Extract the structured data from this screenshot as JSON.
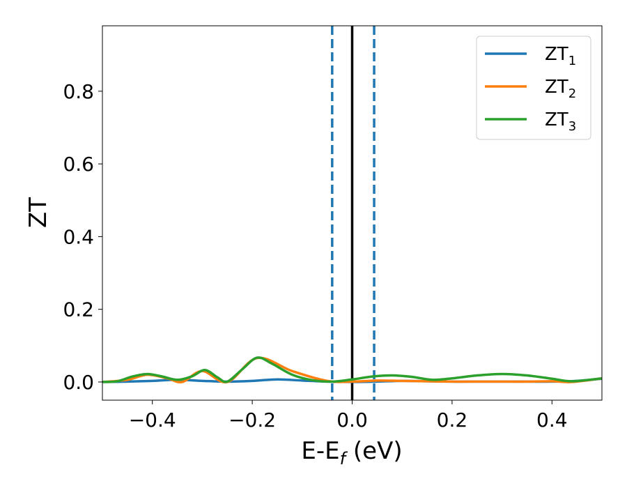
{
  "chart_data": {
    "type": "line",
    "xlabel": "E-E",
    "xlabel_sub": "f",
    "xlabel_unit": " (eV)",
    "ylabel": "ZT",
    "xlim": [
      -0.5,
      0.5
    ],
    "ylim": [
      -0.05,
      0.98
    ],
    "xticks": [
      -0.4,
      -0.2,
      0.0,
      0.2,
      0.4
    ],
    "xtick_labels": [
      "−0.4",
      "−0.2",
      "0.0",
      "0.2",
      "0.4"
    ],
    "yticks": [
      0.0,
      0.2,
      0.4,
      0.6,
      0.8
    ],
    "ytick_labels": [
      "0.0",
      "0.2",
      "0.4",
      "0.6",
      "0.8"
    ],
    "grid": false,
    "legend_position": "top-right",
    "reference_lines": [
      {
        "x": -0.04,
        "style": "dashed",
        "color": "#1f77b4"
      },
      {
        "x": 0.0,
        "style": "solid",
        "color": "#000000"
      },
      {
        "x": 0.044,
        "style": "dashed",
        "color": "#1f77b4"
      }
    ],
    "series": [
      {
        "name": "ZT",
        "name_sub": "1",
        "color": "#1f77b4",
        "x": [
          -0.5,
          -0.45,
          -0.4,
          -0.35,
          -0.3,
          -0.25,
          -0.2,
          -0.15,
          -0.1,
          -0.05,
          0.0,
          0.05,
          0.1,
          0.15,
          0.2,
          0.25,
          0.3,
          0.35,
          0.4,
          0.45,
          0.5
        ],
        "y": [
          0.0,
          0.001,
          0.003,
          0.006,
          0.003,
          0.001,
          0.003,
          0.007,
          0.004,
          0.001,
          0.0,
          0.001,
          0.003,
          0.002,
          0.001,
          0.001,
          0.001,
          0.001,
          0.001,
          0.003,
          0.009
        ]
      },
      {
        "name": "ZT",
        "name_sub": "2",
        "color": "#ff7f0e",
        "x": [
          -0.5,
          -0.45,
          -0.41,
          -0.37,
          -0.34,
          -0.3,
          -0.25,
          -0.19,
          -0.12,
          -0.05,
          0.0,
          0.05,
          0.1,
          0.15,
          0.2,
          0.25,
          0.3,
          0.35,
          0.4,
          0.44,
          0.5
        ],
        "y": [
          0.0,
          0.006,
          0.02,
          0.01,
          0.0,
          0.03,
          0.0,
          0.066,
          0.03,
          0.003,
          0.001,
          0.004,
          0.003,
          0.002,
          0.001,
          0.001,
          0.001,
          0.001,
          0.002,
          0.0,
          0.01
        ]
      },
      {
        "name": "ZT",
        "name_sub": "3",
        "color": "#2ca02c",
        "x": [
          -0.5,
          -0.47,
          -0.44,
          -0.41,
          -0.38,
          -0.35,
          -0.32,
          -0.295,
          -0.27,
          -0.25,
          -0.22,
          -0.19,
          -0.16,
          -0.12,
          -0.08,
          -0.04,
          0.0,
          0.04,
          0.08,
          0.12,
          0.16,
          0.2,
          0.25,
          0.3,
          0.35,
          0.4,
          0.44,
          0.5
        ],
        "y": [
          0.0,
          0.002,
          0.015,
          0.022,
          0.015,
          0.006,
          0.016,
          0.033,
          0.013,
          0.001,
          0.035,
          0.067,
          0.05,
          0.02,
          0.005,
          0.001,
          0.007,
          0.015,
          0.018,
          0.014,
          0.006,
          0.01,
          0.018,
          0.022,
          0.018,
          0.009,
          0.002,
          0.01
        ]
      }
    ]
  }
}
